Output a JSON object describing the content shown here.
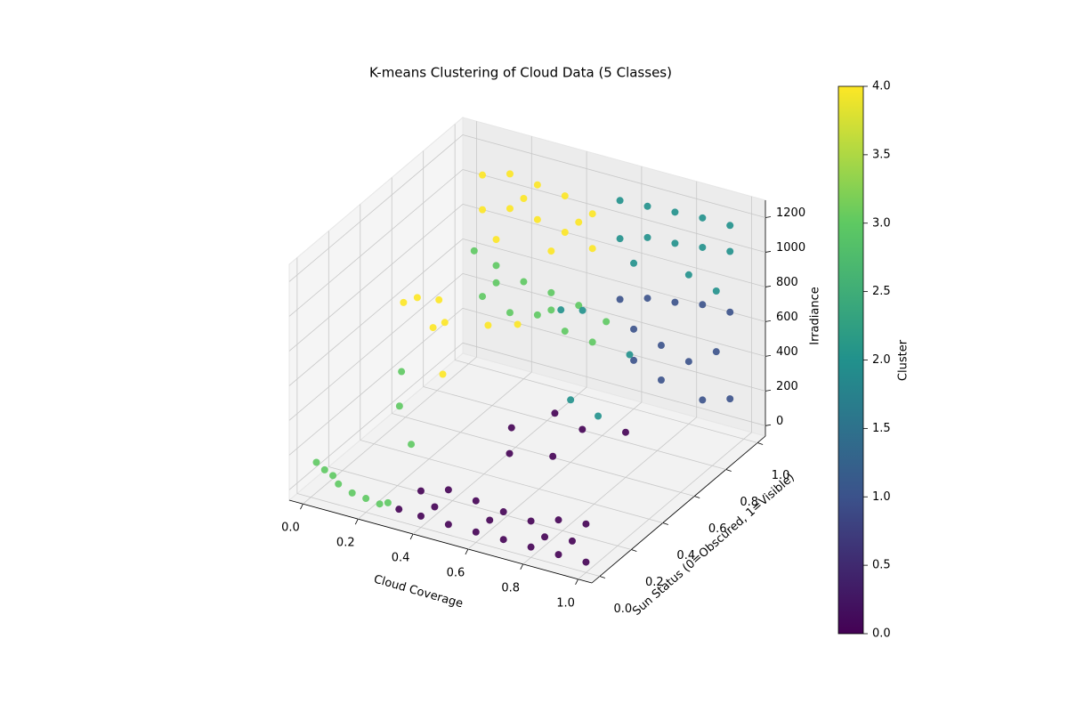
{
  "chart_data": {
    "type": "scatter3d",
    "title": "K-means Clustering of Cloud Data (5 Classes)",
    "xlabel": "Cloud Coverage",
    "ylabel": "Sun Status (0=Obscured, 1=Visible)",
    "zlabel": "Irradiance",
    "colorbar_label": "Cluster",
    "xlim": [
      -0.05,
      1.05
    ],
    "ylim": [
      -0.05,
      1.05
    ],
    "zlim": [
      -60,
      1300
    ],
    "xticks": [
      {
        "value": 0,
        "label": "0.0"
      },
      0.2,
      0.4,
      0.6,
      0.8,
      {
        "value": 1,
        "label": "1.0"
      }
    ],
    "yticks": [
      {
        "value": 0,
        "label": "0.0"
      },
      0.2,
      0.4,
      0.6,
      0.8,
      {
        "value": 1,
        "label": "1.0"
      }
    ],
    "zticks": [
      0,
      200,
      400,
      600,
      800,
      1000,
      1200
    ],
    "clim": [
      0,
      4
    ],
    "cticks": [
      {
        "value": 0,
        "label": "0.0"
      },
      0.5,
      {
        "value": 1,
        "label": "1.0"
      },
      1.5,
      {
        "value": 2,
        "label": "2.0"
      },
      2.5,
      {
        "value": 3,
        "label": "3.0"
      },
      3.5,
      {
        "value": 4,
        "label": "4.0"
      }
    ],
    "colormap": [
      "#440154",
      "#3b528b",
      "#21918c",
      "#5ec962",
      "#fde725"
    ],
    "grid": true,
    "points": {
      "x": [
        0.05,
        0.15,
        0.25,
        0.35,
        0.45,
        0.05,
        0.15,
        0.25,
        0.35,
        0.45,
        0.1,
        0.3,
        0.2,
        0.4,
        0.55,
        0.65,
        0.75,
        0.85,
        0.95,
        0.55,
        0.65,
        0.75,
        0.85,
        0.95,
        0.6,
        0.8,
        0.9,
        0.02,
        0.1,
        0.2,
        0.3,
        0.4,
        0.5,
        0.05,
        0.15,
        0.25,
        0.35,
        0.45,
        0.1,
        0.3,
        0.55,
        0.65,
        0.75,
        0.85,
        0.95,
        0.6,
        0.7,
        0.8,
        0.9,
        0.95,
        0.7,
        0.85,
        0.6,
        0.02,
        0.05,
        0.1,
        0.15,
        0.2,
        0.25,
        0.28,
        0.08,
        0.32,
        0.4,
        0.5,
        0.6,
        0.7,
        0.8,
        0.9,
        1.0,
        0.4,
        0.5,
        0.6,
        0.7,
        0.8,
        0.9,
        1.0,
        0.45,
        0.65,
        0.85,
        0.95,
        0.05,
        0.1,
        0.15,
        0.2,
        0.3,
        0.35,
        0.1,
        0.25,
        0.45,
        0.5,
        0.7,
        0.6,
        0.7,
        0.5,
        0.6,
        0.7,
        0.8,
        0.55,
        0.65,
        0.1,
        0.15,
        0.25
      ],
      "y": [
        1,
        1,
        1,
        1,
        1,
        1,
        1,
        1,
        1,
        1,
        1,
        1,
        1,
        1,
        1,
        1,
        1,
        1,
        1,
        1,
        1,
        1,
        1,
        1,
        1,
        1,
        1,
        1,
        1,
        1,
        1,
        1,
        1,
        1,
        1,
        1,
        1,
        1,
        1,
        1,
        1,
        1,
        1,
        1,
        1,
        1,
        1,
        1,
        1,
        1,
        1,
        1,
        1,
        0,
        0,
        0,
        0,
        0,
        0,
        0,
        0,
        0,
        0,
        0,
        0,
        0,
        0,
        0,
        0,
        0,
        0,
        0,
        0,
        0,
        0,
        0,
        0,
        0,
        0,
        0,
        0.5,
        0.5,
        0.55,
        0.5,
        0.6,
        0.7,
        0.6,
        0.4,
        0.8,
        0.85,
        0.8,
        0.6,
        0.6,
        0.4,
        0.5,
        0.5,
        0.6,
        0.3,
        0.4,
        0.4,
        0.3,
        0.2
      ],
      "z": [
        1050,
        1100,
        1080,
        1060,
        1000,
        850,
        900,
        880,
        850,
        800,
        700,
        720,
        980,
        930,
        1120,
        1130,
        1140,
        1150,
        1150,
        900,
        950,
        960,
        980,
        1000,
        780,
        800,
        750,
        600,
        550,
        500,
        480,
        450,
        400,
        350,
        300,
        330,
        280,
        260,
        450,
        380,
        550,
        600,
        620,
        650,
        650,
        400,
        350,
        300,
        400,
        150,
        150,
        100,
        220,
        150,
        120,
        60,
        30,
        20,
        10,
        30,
        100,
        10,
        5,
        0,
        0,
        0,
        0,
        0,
        0,
        150,
        200,
        180,
        160,
        150,
        200,
        220,
        80,
        90,
        80,
        100,
        700,
        750,
        720,
        650,
        600,
        550,
        500,
        450,
        600,
        580,
        450,
        300,
        250,
        250,
        300,
        250,
        200,
        200,
        150,
        400,
        300,
        200
      ],
      "cluster": [
        4,
        4,
        4,
        4,
        4,
        4,
        4,
        4,
        4,
        4,
        4,
        4,
        4,
        4,
        2,
        2,
        2,
        2,
        2,
        2,
        2,
        2,
        2,
        2,
        2,
        2,
        2,
        3,
        3,
        3,
        3,
        3,
        3,
        3,
        3,
        3,
        3,
        3,
        3,
        3,
        1,
        1,
        1,
        1,
        1,
        1,
        1,
        1,
        1,
        1,
        1,
        1,
        1,
        3,
        3,
        3,
        3,
        3,
        3,
        3,
        3,
        0,
        0,
        0,
        0,
        0,
        0,
        0,
        0,
        0,
        0,
        0,
        0,
        0,
        0,
        0,
        0,
        0,
        0,
        0,
        4,
        4,
        4,
        4,
        4,
        4,
        4,
        4,
        2,
        2,
        2,
        2,
        2,
        0,
        0,
        0,
        0,
        0,
        0,
        3,
        3,
        3
      ]
    }
  }
}
